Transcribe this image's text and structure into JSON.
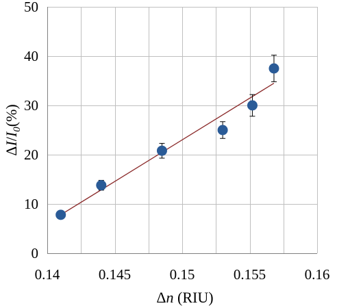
{
  "chart_data": {
    "type": "scatter",
    "xlabel": {
      "prefix": "Δ",
      "var": "n",
      "suffix": " (RIU)"
    },
    "ylabel": {
      "prefix": "Δ",
      "var1": "I",
      "slash": "/",
      "var2": "I",
      "sub": "0",
      "suffix": "(%)"
    },
    "xlim": [
      0.14,
      0.16
    ],
    "ylim": [
      0,
      50
    ],
    "x_ticks": [
      "0.14",
      "0.145",
      "0.15",
      "0.155",
      "0.16"
    ],
    "x_tick_values": [
      0.14,
      0.145,
      0.15,
      0.155,
      0.16
    ],
    "y_ticks": [
      "0",
      "10",
      "20",
      "30",
      "40",
      "50"
    ],
    "y_tick_values": [
      0,
      10,
      20,
      30,
      40,
      50
    ],
    "grid": true,
    "x_grid_step": 0.0025,
    "series": [
      {
        "points": [
          {
            "x": 0.141,
            "y": 7.8,
            "err": 0.5
          },
          {
            "x": 0.144,
            "y": 13.8,
            "err": 1.0
          },
          {
            "x": 0.1485,
            "y": 20.8,
            "err": 1.5
          },
          {
            "x": 0.153,
            "y": 25.0,
            "err": 1.7
          },
          {
            "x": 0.1552,
            "y": 30.0,
            "err": 2.2
          },
          {
            "x": 0.1568,
            "y": 37.5,
            "err": 2.7
          }
        ],
        "marker_color": "#2a5b97"
      }
    ],
    "trendline": {
      "x": [
        0.141,
        0.1568
      ],
      "y": [
        7.8,
        34.5
      ],
      "color": "#8b2a2a"
    }
  }
}
